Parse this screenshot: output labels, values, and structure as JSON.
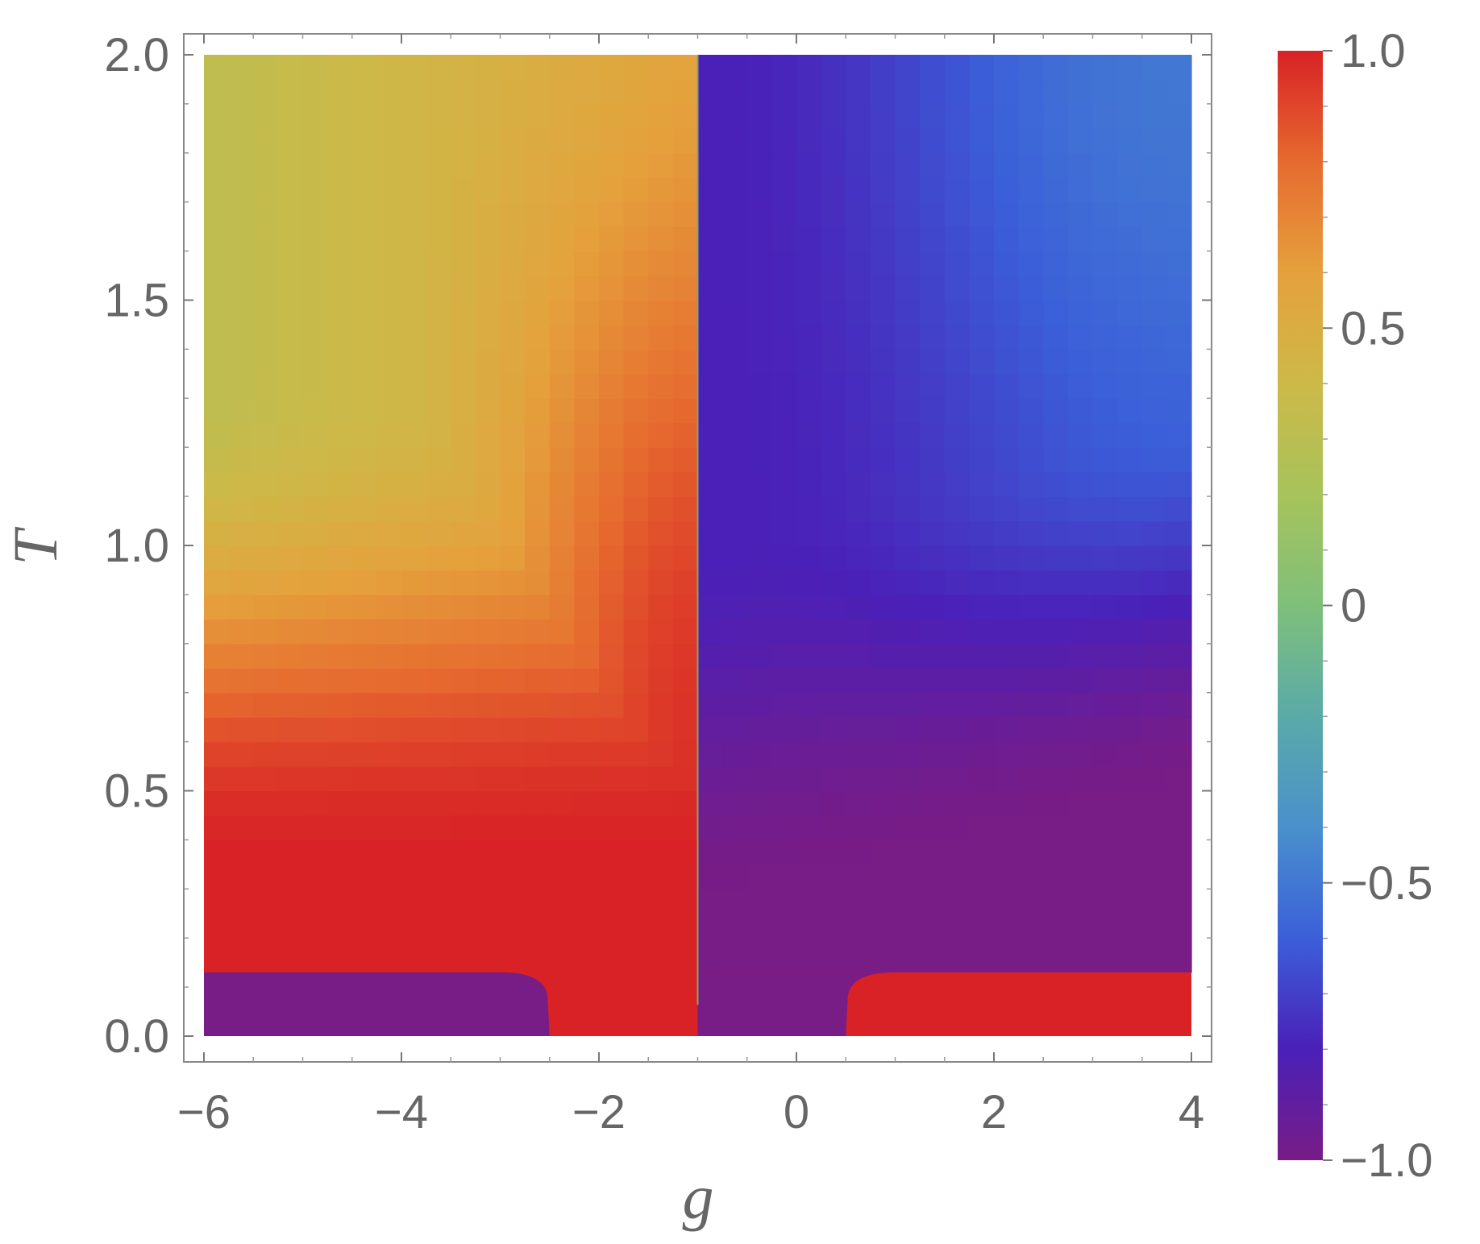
{
  "chart_data": {
    "type": "heatmap",
    "title": "",
    "xlabel": "g",
    "ylabel": "T",
    "xlim": [
      -6,
      4
    ],
    "ylim": [
      0,
      2
    ],
    "x_ticks": [
      {
        "value": -6,
        "label": "−6"
      },
      {
        "value": -4,
        "label": "−4"
      },
      {
        "value": -2,
        "label": "−2"
      },
      {
        "value": 0,
        "label": "0"
      },
      {
        "value": 2,
        "label": "2"
      },
      {
        "value": 4,
        "label": "4"
      }
    ],
    "y_ticks": [
      {
        "value": 0,
        "label": "0.0"
      },
      {
        "value": 0.5,
        "label": "0.5"
      },
      {
        "value": 1,
        "label": "1.0"
      },
      {
        "value": 1.5,
        "label": "1.5"
      },
      {
        "value": 2,
        "label": "2.0"
      }
    ],
    "colorbar": {
      "range": [
        -1,
        1
      ],
      "ticks": [
        {
          "value": 1,
          "label": "1.0"
        },
        {
          "value": 0.5,
          "label": "0.5"
        },
        {
          "value": 0,
          "label": "0"
        },
        {
          "value": -0.5,
          "label": "−0.5"
        },
        {
          "value": -1,
          "label": "−1.0"
        }
      ],
      "colormap": [
        {
          "v": -1.0,
          "color": "#781c86"
        },
        {
          "v": -0.8,
          "color": "#4a20b8"
        },
        {
          "v": -0.6,
          "color": "#3b5fd9"
        },
        {
          "v": -0.4,
          "color": "#4a90cc"
        },
        {
          "v": -0.2,
          "color": "#5aaaa8"
        },
        {
          "v": 0.0,
          "color": "#7fbf7b"
        },
        {
          "v": 0.2,
          "color": "#a7c35b"
        },
        {
          "v": 0.4,
          "color": "#cdb948"
        },
        {
          "v": 0.6,
          "color": "#e5a13c"
        },
        {
          "v": 0.8,
          "color": "#e66a2f"
        },
        {
          "v": 1.0,
          "color": "#d82226"
        }
      ]
    },
    "regions": [
      {
        "g_range": [
          -6,
          -1
        ],
        "T_range": [
          0.13,
          2
        ],
        "description": "value rises toward 1.0 at low T and near g=-1, about 0.3-0.5 at high T and g=-6"
      },
      {
        "g_range": [
          -1,
          4
        ],
        "T_range": [
          0.13,
          2
        ],
        "description": "value near -1.0 at low T, about -0.55 at high T and large g"
      },
      {
        "g_range": [
          -6,
          -2.5
        ],
        "T_range": [
          0,
          0.13
        ],
        "value": -1
      },
      {
        "g_range": [
          -2.5,
          -1
        ],
        "T_range": [
          0,
          0.13
        ],
        "value": 1
      },
      {
        "g_range": [
          -1,
          0.5
        ],
        "T_range": [
          0,
          0.13
        ],
        "value": -1
      },
      {
        "g_range": [
          0.5,
          4
        ],
        "T_range": [
          0,
          0.13
        ],
        "value": 1
      }
    ],
    "boundary_g": -1,
    "low_T_step": 0.13
  }
}
